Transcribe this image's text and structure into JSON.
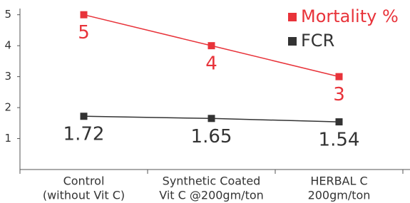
{
  "chart_data": {
    "type": "line",
    "categories": [
      [
        "Control",
        "(without Vit C)"
      ],
      [
        "Synthetic Coated",
        "Vit C @200gm/ton"
      ],
      [
        "HERBAL C",
        "200gm/ton"
      ]
    ],
    "series": [
      {
        "name": "Mortality %",
        "color": "#e8333a",
        "values": [
          5,
          4,
          3
        ]
      },
      {
        "name": "FCR",
        "color": "#333333",
        "values": [
          1.72,
          1.65,
          1.54
        ]
      }
    ],
    "ylim": [
      0,
      5.2
    ],
    "yticks": [
      1,
      2,
      3,
      4,
      5
    ],
    "grid": false,
    "legend": "top-right"
  }
}
